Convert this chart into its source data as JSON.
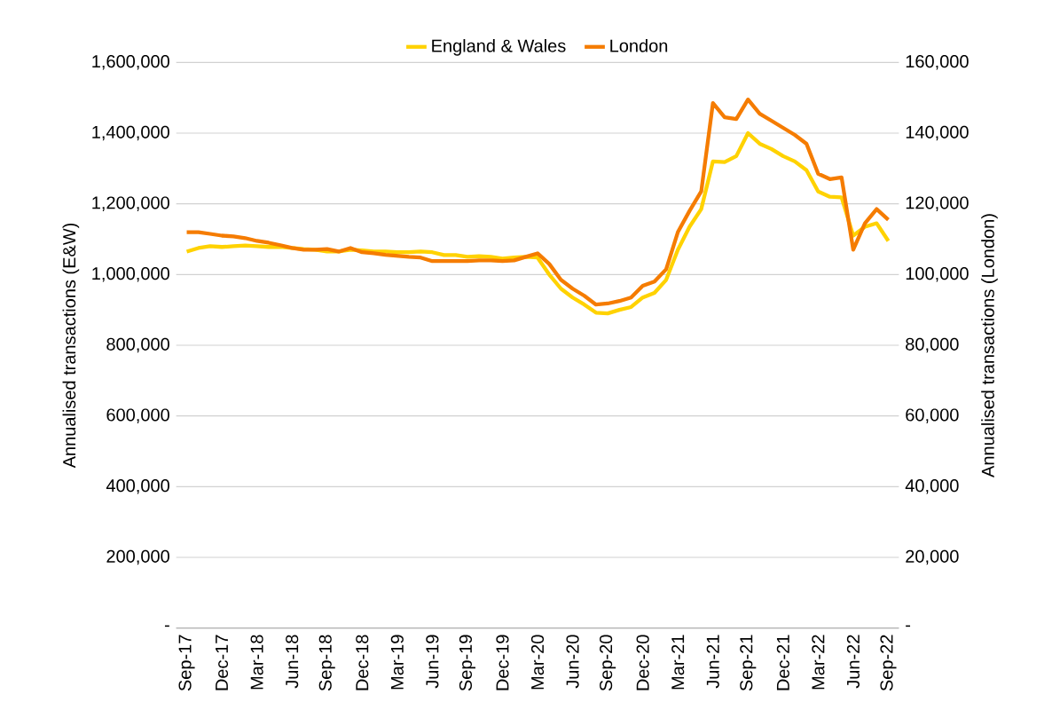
{
  "chart_data": {
    "type": "line",
    "ylabel": "Annualised transactions (E&W)",
    "y2label": "Annualised transactions (London)",
    "categories": [
      "Sep-17",
      null,
      null,
      "Dec-17",
      null,
      null,
      "Mar-18",
      null,
      null,
      "Jun-18",
      null,
      null,
      "Sep-18",
      null,
      null,
      "Dec-18",
      null,
      null,
      "Mar-19",
      null,
      null,
      "Jun-19",
      null,
      null,
      "Sep-19",
      null,
      null,
      "Dec-19",
      null,
      null,
      "Mar-20",
      null,
      null,
      "Jun-20",
      null,
      null,
      "Sep-20",
      null,
      null,
      "Dec-20",
      null,
      null,
      "Mar-21",
      null,
      null,
      "Jun-21",
      null,
      null,
      "Sep-21",
      null,
      null,
      "Dec-21",
      null,
      null,
      "Mar-22",
      null,
      null,
      "Jun-22",
      null,
      null,
      "Sep-22"
    ],
    "series": [
      {
        "name": "England & Wales",
        "color": "#ffd200",
        "values": [
          1065000,
          1075000,
          1080000,
          1078000,
          1080000,
          1082000,
          1080000,
          1078000,
          1078000,
          1075000,
          1072000,
          1070000,
          1065000,
          1065000,
          1070000,
          1068000,
          1065000,
          1065000,
          1063000,
          1063000,
          1065000,
          1063000,
          1055000,
          1055000,
          1050000,
          1052000,
          1050000,
          1045000,
          1048000,
          1050000,
          1048000,
          1000000,
          960000,
          935000,
          915000,
          892000,
          890000,
          900000,
          908000,
          935000,
          948000,
          985000,
          1070000,
          1135000,
          1185000,
          1320000,
          1318000,
          1335000,
          1400000,
          1370000,
          1355000,
          1335000,
          1320000,
          1295000,
          1235000,
          1220000,
          1218000,
          1110000,
          1135000,
          1145000,
          1095000
        ]
      },
      {
        "name": "London",
        "color": "#f57c00",
        "axis": "y2",
        "values": [
          112000,
          112000,
          111500,
          111000,
          110800,
          110300,
          109500,
          109000,
          108300,
          107500,
          107000,
          107000,
          107200,
          106500,
          107500,
          106300,
          106000,
          105600,
          105300,
          105000,
          104800,
          103800,
          103800,
          103800,
          103800,
          104000,
          104000,
          103800,
          104000,
          105000,
          106000,
          103000,
          98500,
          96000,
          94000,
          91500,
          91800,
          92500,
          93500,
          96800,
          98000,
          101500,
          112000,
          118000,
          123500,
          148500,
          144500,
          144000,
          149500,
          145500,
          143500,
          141500,
          139500,
          137000,
          128500,
          127000,
          127500,
          107000,
          114500,
          118500,
          115500
        ]
      }
    ],
    "ylim": [
      0,
      1600000
    ],
    "yticks": [
      {
        "value": 0,
        "label": "-"
      },
      {
        "value": 200000,
        "label": "200,000"
      },
      {
        "value": 400000,
        "label": "400,000"
      },
      {
        "value": 600000,
        "label": "600,000"
      },
      {
        "value": 800000,
        "label": "800,000"
      },
      {
        "value": 1000000,
        "label": "1,000,000"
      },
      {
        "value": 1200000,
        "label": "1,200,000"
      },
      {
        "value": 1400000,
        "label": "1,400,000"
      },
      {
        "value": 1600000,
        "label": "1,600,000"
      }
    ],
    "y2lim": [
      0,
      160000
    ],
    "y2ticks": [
      {
        "value": 0,
        "label": "-"
      },
      {
        "value": 20000,
        "label": "20,000"
      },
      {
        "value": 40000,
        "label": "40,000"
      },
      {
        "value": 60000,
        "label": "60,000"
      },
      {
        "value": 80000,
        "label": "80,000"
      },
      {
        "value": 100000,
        "label": "100,000"
      },
      {
        "value": 120000,
        "label": "120,000"
      },
      {
        "value": 140000,
        "label": "140,000"
      },
      {
        "value": 160000,
        "label": "160,000"
      }
    ],
    "grid": "y",
    "legend": "top",
    "marker": "none",
    "line_style": "solid"
  }
}
